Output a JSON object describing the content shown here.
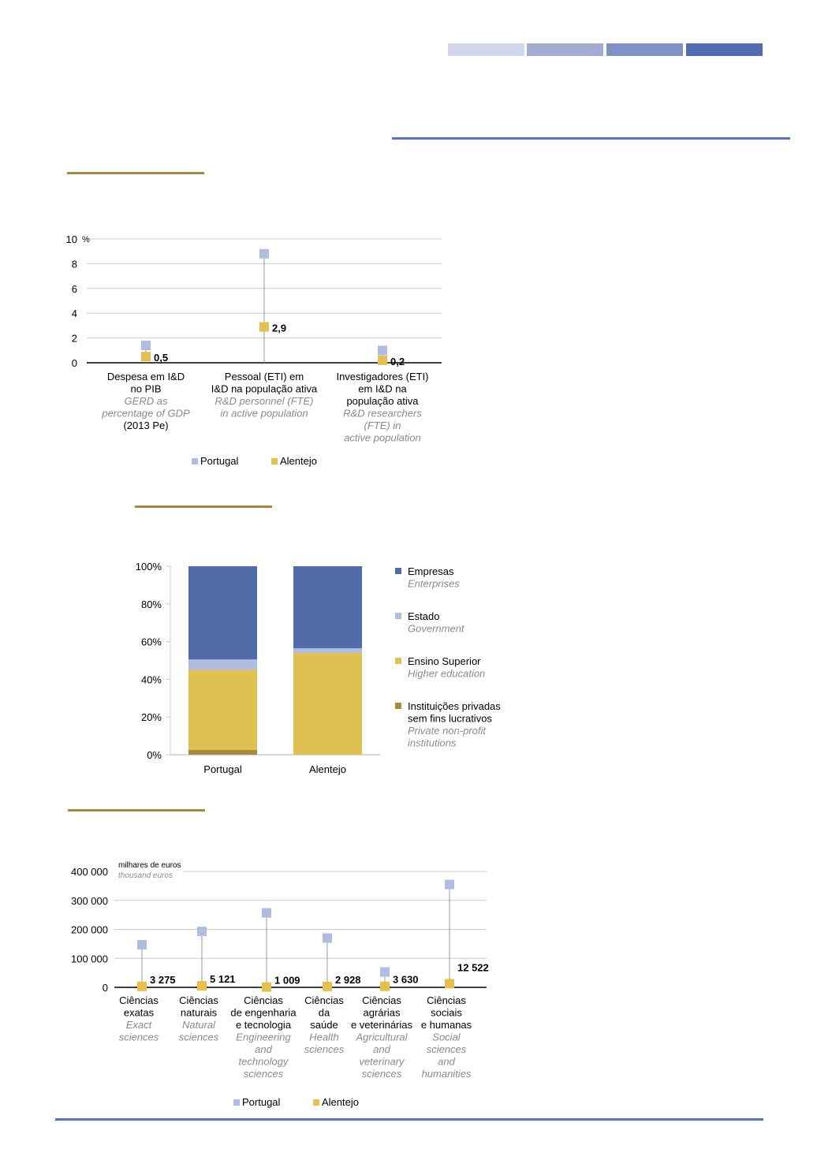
{
  "header_bands": [
    {
      "color": "#d3d6e8"
    },
    {
      "color": "#a3add4"
    },
    {
      "color": "#8291c5"
    },
    {
      "color": "#516cb0"
    }
  ],
  "colors": {
    "portugal": "#b0bde0",
    "alentejo": "#e3c04f",
    "axis": "#000000",
    "grid": "#cccccc",
    "stem": "#999999"
  },
  "chart_data": [
    {
      "type": "scatter",
      "unit_label": "%",
      "ylim": [
        0,
        10
      ],
      "yticks": [
        "0",
        "2",
        "4",
        "6",
        "8",
        "10"
      ],
      "categories": [
        {
          "pt": [
            "Despesa em I&D",
            "no PIB"
          ],
          "en": [
            "GERD as",
            "percentage of GDP"
          ],
          "note": [
            "(2013 Pe)"
          ]
        },
        {
          "pt": [
            "Pessoal (ETI) em",
            "I&D na população ativa"
          ],
          "en": [
            "R&D personnel (FTE)",
            "in active population"
          ],
          "note": []
        },
        {
          "pt": [
            "Investigadores (ETI)",
            "em I&D na",
            "população ativa"
          ],
          "en": [
            "R&D researchers",
            "(FTE) in",
            "active population"
          ],
          "note": []
        }
      ],
      "series": [
        {
          "name": "Portugal",
          "values": [
            1.4,
            8.8,
            1.0
          ]
        },
        {
          "name": "Alentejo",
          "values": [
            0.5,
            2.9,
            0.2
          ]
        }
      ],
      "data_labels": [
        "0,5",
        "2,9",
        "0,2"
      ],
      "legend": [
        "Portugal",
        "Alentejo"
      ]
    },
    {
      "type": "bar",
      "stacked": true,
      "ylim": [
        0,
        100
      ],
      "yticks": [
        "0%",
        "20%",
        "40%",
        "60%",
        "80%",
        "100%"
      ],
      "categories": [
        "Portugal",
        "Alentejo"
      ],
      "series": [
        {
          "name": "Instituições privadas sem fins lucrativos",
          "name_lines": [
            "Instituições privadas",
            "sem fins lucrativos"
          ],
          "name_en_lines": [
            "Private non-profit",
            "institutions"
          ],
          "color": "#a38a3f",
          "values": [
            2.5,
            0
          ]
        },
        {
          "name": "Ensino Superior",
          "name_lines": [
            "Ensino Superior"
          ],
          "name_en_lines": [
            "Higher education"
          ],
          "color": "#dfc052",
          "values": [
            42.5,
            54
          ]
        },
        {
          "name": "Estado",
          "name_lines": [
            "Estado"
          ],
          "name_en_lines": [
            "Government"
          ],
          "color": "#b0bde0",
          "values": [
            5.5,
            2.5
          ]
        },
        {
          "name": "Empresas",
          "name_lines": [
            "Empresas"
          ],
          "name_en_lines": [
            "Enterprises"
          ],
          "color": "#516aa8",
          "values": [
            49.5,
            43.5
          ]
        }
      ]
    },
    {
      "type": "scatter",
      "unit_label_pt": "milhares de euros",
      "unit_label_en": "thousand  euros",
      "ylim": [
        0,
        400000
      ],
      "yticks": [
        "0",
        "100 000",
        "200 000",
        "300 000",
        "400 000"
      ],
      "categories": [
        {
          "pt": [
            "Ciências",
            "exatas"
          ],
          "en": [
            "Exact",
            "sciences"
          ]
        },
        {
          "pt": [
            "Ciências",
            "naturais"
          ],
          "en": [
            "Natural",
            "sciences"
          ]
        },
        {
          "pt": [
            "Ciências",
            "de engenharia",
            "e tecnologia"
          ],
          "en": [
            "Engineering",
            "and",
            "technology",
            "sciences"
          ]
        },
        {
          "pt": [
            "Ciências",
            "da",
            "saúde"
          ],
          "en": [
            "Health",
            "sciences"
          ]
        },
        {
          "pt": [
            "Ciências",
            "agrárias",
            "e veterinárias"
          ],
          "en": [
            "Agricultural",
            "and",
            "veterinary",
            "sciences"
          ]
        },
        {
          "pt": [
            "Ciências",
            "sociais",
            "e humanas"
          ],
          "en": [
            "Social",
            "sciences",
            "and",
            "humanities"
          ]
        }
      ],
      "series": [
        {
          "name": "Portugal",
          "values": [
            147000,
            193000,
            257000,
            170000,
            53000,
            355000
          ]
        },
        {
          "name": "Alentejo",
          "values": [
            3275,
            5121,
            1009,
            2928,
            3630,
            12522
          ]
        }
      ],
      "data_labels": [
        "3 275",
        "5 121",
        "1 009",
        "2 928",
        "3 630",
        "12 522"
      ],
      "legend": [
        "Portugal",
        "Alentejo"
      ]
    }
  ]
}
